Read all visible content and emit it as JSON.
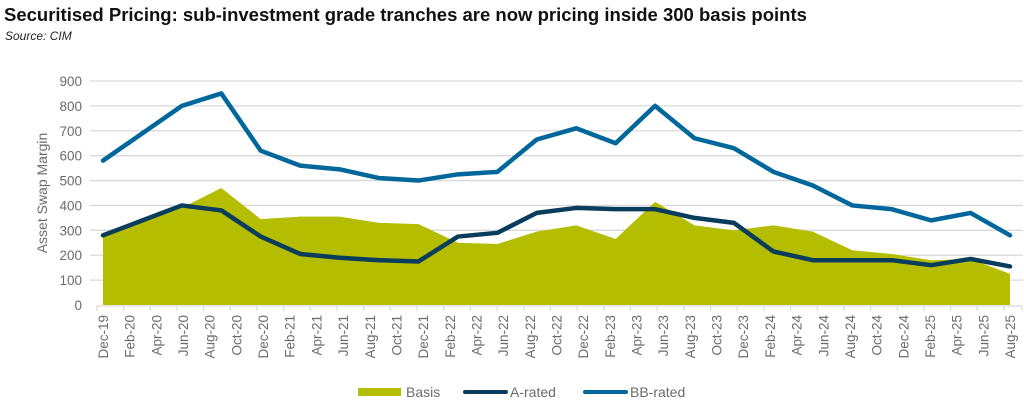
{
  "title": "Securitised Pricing: sub-investment grade tranches are now pricing inside 300 basis points",
  "source": "Source: CIM",
  "colors": {
    "basis": "#b5bd00",
    "a_rated": "#0a3d5c",
    "bb_rated": "#00679c",
    "grid": "#d9d9d9",
    "text": "#6b6b6b"
  },
  "chart_data": {
    "type": "area+line",
    "title": "Securitised Pricing: sub-investment grade tranches are now pricing inside 300 basis points",
    "subtitle": "Source: CIM",
    "xlabel": "",
    "ylabel": "Asset Swap Margin",
    "ylim": [
      0,
      900
    ],
    "yticks": [
      0,
      100,
      200,
      300,
      400,
      500,
      600,
      700,
      800,
      900
    ],
    "grid": true,
    "legend_position": "bottom",
    "xtick_labels": [
      "Dec-19",
      "Feb-20",
      "Apr-20",
      "Jun-20",
      "Aug-20",
      "Oct-20",
      "Dec-20",
      "Feb-21",
      "Apr-21",
      "Jun-21",
      "Aug-21",
      "Oct-21",
      "Dec-21",
      "Feb-22",
      "Apr-22",
      "Jun-22",
      "Aug-22",
      "Oct-22",
      "Dec-22",
      "Feb-23",
      "Apr-23",
      "Jun-23",
      "Aug-23",
      "Oct-23",
      "Dec-23",
      "Feb-24",
      "Apr-24",
      "Jun-24",
      "Aug-24",
      "Oct-24",
      "Dec-24",
      "Feb-25",
      "Apr-25",
      "Jun-25",
      "Aug-25"
    ],
    "x": [
      "Dec-19",
      "Mar-20",
      "Jun-20",
      "Sep-20",
      "Dec-20",
      "Mar-21",
      "Jun-21",
      "Sep-21",
      "Dec-21",
      "Mar-22",
      "Jun-22",
      "Sep-22",
      "Dec-22",
      "Mar-23",
      "Jun-23",
      "Sep-23",
      "Dec-23",
      "Mar-24",
      "Jun-24",
      "Sep-24",
      "Dec-24",
      "Mar-25",
      "Jun-25",
      "Sep-25"
    ],
    "series": [
      {
        "name": "Basis",
        "type": "area",
        "values": [
          290,
          345,
          390,
          470,
          345,
          355,
          355,
          330,
          325,
          250,
          245,
          295,
          320,
          265,
          415,
          320,
          300,
          320,
          295,
          220,
          205,
          180,
          185,
          125
        ]
      },
      {
        "name": "A-rated",
        "type": "line",
        "values": [
          280,
          340,
          400,
          380,
          275,
          205,
          190,
          180,
          175,
          275,
          290,
          370,
          390,
          385,
          385,
          350,
          330,
          215,
          180,
          180,
          180,
          160,
          185,
          155
        ]
      },
      {
        "name": "BB-rated",
        "type": "line",
        "values": [
          580,
          690,
          800,
          850,
          620,
          560,
          545,
          510,
          500,
          525,
          535,
          665,
          710,
          650,
          800,
          670,
          630,
          535,
          480,
          400,
          385,
          340,
          370,
          280
        ]
      }
    ]
  },
  "legend": [
    {
      "label": "Basis"
    },
    {
      "label": "A-rated"
    },
    {
      "label": "BB-rated"
    }
  ]
}
